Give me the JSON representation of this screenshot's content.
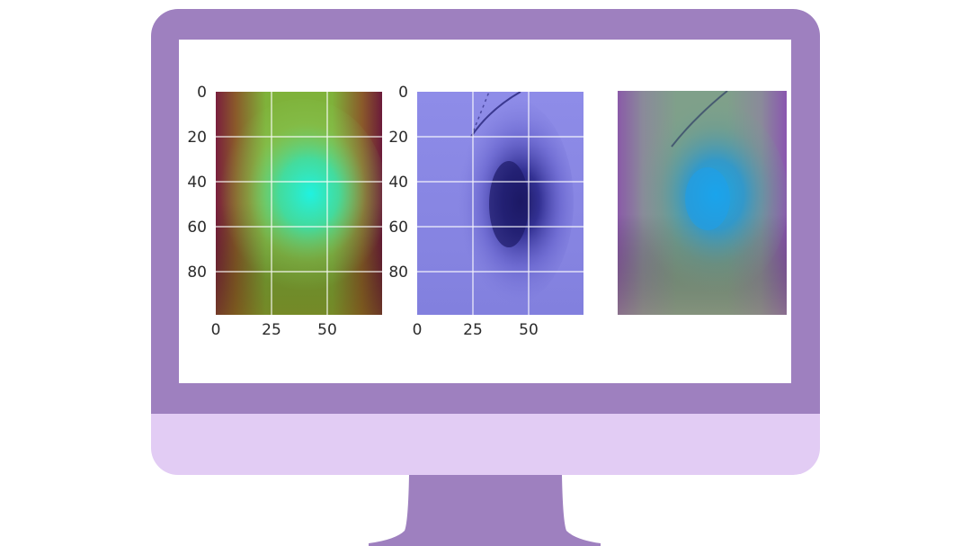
{
  "colors": {
    "frame": "#9e80bf",
    "chin": "#e2ccf4",
    "stand": "#9e80bf",
    "screen": "#ffffff"
  },
  "screen": {
    "panels": [
      {
        "name": "heatmap",
        "y_ticks": [
          "0",
          "20",
          "40",
          "60",
          "80"
        ],
        "x_ticks": [
          "0",
          "25",
          "50"
        ]
      },
      {
        "name": "image",
        "y_ticks": [
          "0",
          "20",
          "40",
          "60",
          "80"
        ],
        "x_ticks": [
          "0",
          "25",
          "50"
        ]
      },
      {
        "name": "overlay",
        "y_ticks": [],
        "x_ticks": []
      }
    ]
  }
}
